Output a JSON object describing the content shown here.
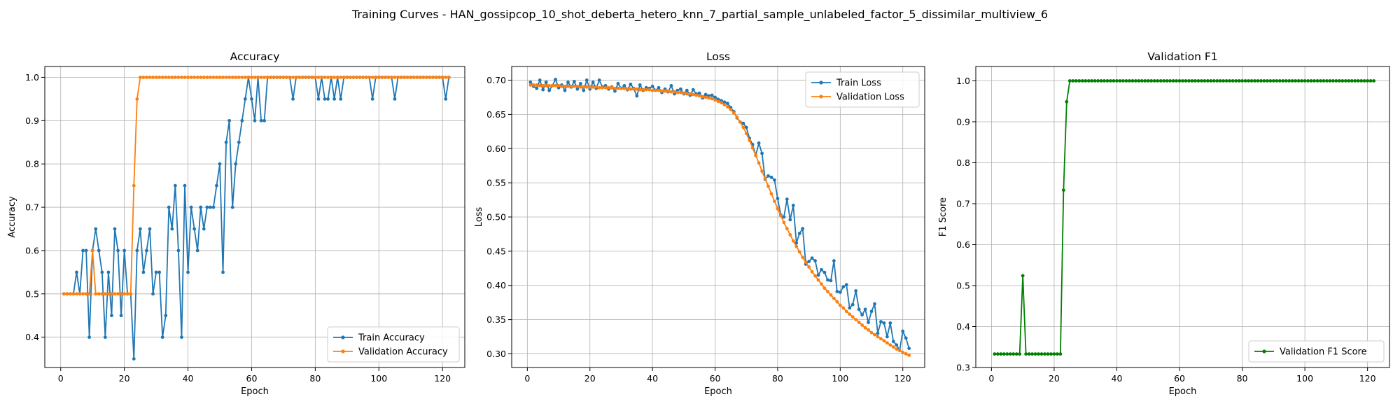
{
  "figure": {
    "suptitle": "Training Curves - HAN_gossipcop_10_shot_deberta_hetero_knn_7_partial_sample_unlabeled_factor_5_dissimilar_multiview_6"
  },
  "colors": {
    "train": "#1f77b4",
    "validation": "#ff7f0e",
    "f1": "#008000",
    "grid": "#b0b0b0"
  },
  "chart_data": [
    {
      "type": "line",
      "title": "Accuracy",
      "xlabel": "Epoch",
      "ylabel": "Accuracy",
      "xlim": [
        -5,
        127
      ],
      "ylim": [
        0.33,
        1.025
      ],
      "xticks": [
        0,
        20,
        40,
        60,
        80,
        100,
        120
      ],
      "yticks": [
        0.4,
        0.5,
        0.6,
        0.7,
        0.8,
        0.9,
        1.0
      ],
      "grid": true,
      "legend_position": "lower-right",
      "x": [
        1,
        2,
        3,
        4,
        5,
        6,
        7,
        8,
        9,
        10,
        11,
        12,
        13,
        14,
        15,
        16,
        17,
        18,
        19,
        20,
        21,
        22,
        23,
        24,
        25,
        26,
        27,
        28,
        29,
        30,
        31,
        32,
        33,
        34,
        35,
        36,
        37,
        38,
        39,
        40,
        41,
        42,
        43,
        44,
        45,
        46,
        47,
        48,
        49,
        50,
        51,
        52,
        53,
        54,
        55,
        56,
        57,
        58,
        59,
        60,
        61,
        62,
        63,
        64,
        65,
        66,
        67,
        68,
        69,
        70,
        71,
        72,
        73,
        74,
        75,
        76,
        77,
        78,
        79,
        80,
        81,
        82,
        83,
        84,
        85,
        86,
        87,
        88,
        89,
        90,
        91,
        92,
        93,
        94,
        95,
        96,
        97,
        98,
        99,
        100,
        101,
        102,
        103,
        104,
        105,
        106,
        107,
        108,
        109,
        110,
        111,
        112,
        113,
        114,
        115,
        116,
        117,
        118,
        119,
        120,
        121,
        122
      ],
      "series": [
        {
          "name": "Train Accuracy",
          "color": "#1f77b4",
          "values": [
            0.5,
            0.5,
            0.5,
            0.5,
            0.55,
            0.5,
            0.6,
            0.6,
            0.4,
            0.6,
            0.65,
            0.6,
            0.55,
            0.4,
            0.55,
            0.45,
            0.65,
            0.6,
            0.45,
            0.6,
            0.5,
            0.5,
            0.35,
            0.6,
            0.65,
            0.55,
            0.6,
            0.65,
            0.5,
            0.55,
            0.55,
            0.4,
            0.45,
            0.7,
            0.65,
            0.75,
            0.6,
            0.4,
            0.75,
            0.55,
            0.7,
            0.65,
            0.6,
            0.7,
            0.65,
            0.7,
            0.7,
            0.7,
            0.75,
            0.8,
            0.55,
            0.85,
            0.9,
            0.7,
            0.8,
            0.85,
            0.9,
            0.95,
            1.0,
            0.95,
            0.9,
            1.0,
            0.9,
            0.9,
            1.0,
            1.0,
            1.0,
            1.0,
            1.0,
            1.0,
            1.0,
            1.0,
            0.95,
            1.0,
            1.0,
            1.0,
            1.0,
            1.0,
            1.0,
            1.0,
            0.95,
            1.0,
            0.95,
            0.95,
            1.0,
            0.95,
            1.0,
            0.95,
            1.0,
            1.0,
            1.0,
            1.0,
            1.0,
            1.0,
            1.0,
            1.0,
            1.0,
            0.95,
            1.0,
            1.0,
            1.0,
            1.0,
            1.0,
            1.0,
            0.95,
            1.0,
            1.0,
            1.0,
            1.0,
            1.0,
            1.0,
            1.0,
            1.0,
            1.0,
            1.0,
            1.0,
            1.0,
            1.0,
            1.0,
            1.0,
            0.95,
            1.0
          ]
        },
        {
          "name": "Validation Accuracy",
          "color": "#ff7f0e",
          "values": [
            0.5,
            0.5,
            0.5,
            0.5,
            0.5,
            0.5,
            0.5,
            0.5,
            0.5,
            0.6,
            0.5,
            0.5,
            0.5,
            0.5,
            0.5,
            0.5,
            0.5,
            0.5,
            0.5,
            0.5,
            0.5,
            0.5,
            0.75,
            0.95,
            1.0,
            1.0,
            1.0,
            1.0,
            1.0,
            1.0,
            1.0,
            1.0,
            1.0,
            1.0,
            1.0,
            1.0,
            1.0,
            1.0,
            1.0,
            1.0,
            1.0,
            1.0,
            1.0,
            1.0,
            1.0,
            1.0,
            1.0,
            1.0,
            1.0,
            1.0,
            1.0,
            1.0,
            1.0,
            1.0,
            1.0,
            1.0,
            1.0,
            1.0,
            1.0,
            1.0,
            1.0,
            1.0,
            1.0,
            1.0,
            1.0,
            1.0,
            1.0,
            1.0,
            1.0,
            1.0,
            1.0,
            1.0,
            1.0,
            1.0,
            1.0,
            1.0,
            1.0,
            1.0,
            1.0,
            1.0,
            1.0,
            1.0,
            1.0,
            1.0,
            1.0,
            1.0,
            1.0,
            1.0,
            1.0,
            1.0,
            1.0,
            1.0,
            1.0,
            1.0,
            1.0,
            1.0,
            1.0,
            1.0,
            1.0,
            1.0,
            1.0,
            1.0,
            1.0,
            1.0,
            1.0,
            1.0,
            1.0,
            1.0,
            1.0,
            1.0,
            1.0,
            1.0,
            1.0,
            1.0,
            1.0,
            1.0,
            1.0,
            1.0,
            1.0,
            1.0,
            1.0,
            1.0
          ]
        }
      ]
    },
    {
      "type": "line",
      "title": "Loss",
      "xlabel": "Epoch",
      "ylabel": "Loss",
      "xlim": [
        -5,
        127
      ],
      "ylim": [
        0.28,
        0.72
      ],
      "xticks": [
        0,
        20,
        40,
        60,
        80,
        100,
        120
      ],
      "yticks": [
        0.3,
        0.35,
        0.4,
        0.45,
        0.5,
        0.55,
        0.6,
        0.65,
        0.7
      ],
      "grid": true,
      "legend_position": "upper-right",
      "x": [
        1,
        2,
        3,
        4,
        5,
        6,
        7,
        8,
        9,
        10,
        11,
        12,
        13,
        14,
        15,
        16,
        17,
        18,
        19,
        20,
        21,
        22,
        23,
        24,
        25,
        26,
        27,
        28,
        29,
        30,
        31,
        32,
        33,
        34,
        35,
        36,
        37,
        38,
        39,
        40,
        41,
        42,
        43,
        44,
        45,
        46,
        47,
        48,
        49,
        50,
        51,
        52,
        53,
        54,
        55,
        56,
        57,
        58,
        59,
        60,
        61,
        62,
        63,
        64,
        65,
        66,
        67,
        68,
        69,
        70,
        71,
        72,
        73,
        74,
        75,
        76,
        77,
        78,
        79,
        80,
        81,
        82,
        83,
        84,
        85,
        86,
        87,
        88,
        89,
        90,
        91,
        92,
        93,
        94,
        95,
        96,
        97,
        98,
        99,
        100,
        101,
        102,
        103,
        104,
        105,
        106,
        107,
        108,
        109,
        110,
        111,
        112,
        113,
        114,
        115,
        116,
        117,
        118,
        119,
        120,
        121,
        122
      ],
      "series": [
        {
          "name": "Train Loss",
          "color": "#1f77b4",
          "values": [
            0.697,
            0.691,
            0.688,
            0.7,
            0.686,
            0.697,
            0.685,
            0.692,
            0.701,
            0.689,
            0.693,
            0.685,
            0.697,
            0.69,
            0.698,
            0.687,
            0.695,
            0.685,
            0.7,
            0.687,
            0.697,
            0.688,
            0.7,
            0.69,
            0.692,
            0.687,
            0.69,
            0.684,
            0.695,
            0.688,
            0.692,
            0.686,
            0.694,
            0.688,
            0.677,
            0.693,
            0.685,
            0.689,
            0.688,
            0.691,
            0.685,
            0.689,
            0.682,
            0.687,
            0.683,
            0.692,
            0.68,
            0.685,
            0.687,
            0.68,
            0.685,
            0.678,
            0.686,
            0.68,
            0.681,
            0.674,
            0.679,
            0.677,
            0.678,
            0.675,
            0.672,
            0.67,
            0.668,
            0.666,
            0.66,
            0.654,
            0.645,
            0.639,
            0.637,
            0.631,
            0.615,
            0.606,
            0.59,
            0.608,
            0.593,
            0.555,
            0.56,
            0.558,
            0.554,
            0.527,
            0.503,
            0.5,
            0.526,
            0.496,
            0.517,
            0.462,
            0.476,
            0.483,
            0.431,
            0.435,
            0.44,
            0.436,
            0.415,
            0.423,
            0.419,
            0.408,
            0.407,
            0.436,
            0.391,
            0.39,
            0.398,
            0.401,
            0.367,
            0.372,
            0.392,
            0.365,
            0.357,
            0.365,
            0.346,
            0.362,
            0.373,
            0.33,
            0.347,
            0.345,
            0.325,
            0.345,
            0.318,
            0.313,
            0.305,
            0.333,
            0.323,
            0.308
          ]
        },
        {
          "name": "Validation Loss",
          "color": "#ff7f0e",
          "values": [
            0.693,
            0.693,
            0.693,
            0.692,
            0.692,
            0.692,
            0.692,
            0.692,
            0.692,
            0.692,
            0.691,
            0.691,
            0.691,
            0.691,
            0.691,
            0.691,
            0.69,
            0.69,
            0.69,
            0.69,
            0.69,
            0.69,
            0.689,
            0.689,
            0.689,
            0.689,
            0.689,
            0.688,
            0.688,
            0.688,
            0.688,
            0.687,
            0.687,
            0.687,
            0.687,
            0.686,
            0.686,
            0.686,
            0.686,
            0.685,
            0.685,
            0.685,
            0.684,
            0.684,
            0.684,
            0.683,
            0.683,
            0.682,
            0.682,
            0.681,
            0.68,
            0.68,
            0.679,
            0.678,
            0.677,
            0.676,
            0.675,
            0.674,
            0.673,
            0.671,
            0.669,
            0.667,
            0.664,
            0.661,
            0.657,
            0.652,
            0.646,
            0.639,
            0.631,
            0.622,
            0.612,
            0.601,
            0.59,
            0.579,
            0.567,
            0.556,
            0.545,
            0.534,
            0.523,
            0.512,
            0.502,
            0.492,
            0.483,
            0.474,
            0.465,
            0.457,
            0.449,
            0.441,
            0.434,
            0.427,
            0.42,
            0.414,
            0.408,
            0.402,
            0.396,
            0.391,
            0.386,
            0.381,
            0.376,
            0.371,
            0.367,
            0.362,
            0.358,
            0.354,
            0.35,
            0.346,
            0.342,
            0.338,
            0.335,
            0.331,
            0.328,
            0.325,
            0.322,
            0.319,
            0.316,
            0.313,
            0.31,
            0.307,
            0.305,
            0.302,
            0.3,
            0.298
          ]
        }
      ]
    },
    {
      "type": "line",
      "title": "Validation F1",
      "xlabel": "Epoch",
      "ylabel": "F1 Score",
      "xlim": [
        -5,
        127
      ],
      "ylim": [
        0.3,
        1.035
      ],
      "xticks": [
        0,
        20,
        40,
        60,
        80,
        100,
        120
      ],
      "yticks": [
        0.3,
        0.4,
        0.5,
        0.6,
        0.7,
        0.8,
        0.9,
        1.0
      ],
      "grid": true,
      "legend_position": "lower-right",
      "x": [
        1,
        2,
        3,
        4,
        5,
        6,
        7,
        8,
        9,
        10,
        11,
        12,
        13,
        14,
        15,
        16,
        17,
        18,
        19,
        20,
        21,
        22,
        23,
        24,
        25,
        26,
        27,
        28,
        29,
        30,
        31,
        32,
        33,
        34,
        35,
        36,
        37,
        38,
        39,
        40,
        41,
        42,
        43,
        44,
        45,
        46,
        47,
        48,
        49,
        50,
        51,
        52,
        53,
        54,
        55,
        56,
        57,
        58,
        59,
        60,
        61,
        62,
        63,
        64,
        65,
        66,
        67,
        68,
        69,
        70,
        71,
        72,
        73,
        74,
        75,
        76,
        77,
        78,
        79,
        80,
        81,
        82,
        83,
        84,
        85,
        86,
        87,
        88,
        89,
        90,
        91,
        92,
        93,
        94,
        95,
        96,
        97,
        98,
        99,
        100,
        101,
        102,
        103,
        104,
        105,
        106,
        107,
        108,
        109,
        110,
        111,
        112,
        113,
        114,
        115,
        116,
        117,
        118,
        119,
        120,
        121,
        122
      ],
      "series": [
        {
          "name": "Validation F1 Score",
          "color": "#008000",
          "values": [
            0.333,
            0.333,
            0.333,
            0.333,
            0.333,
            0.333,
            0.333,
            0.333,
            0.333,
            0.524,
            0.333,
            0.333,
            0.333,
            0.333,
            0.333,
            0.333,
            0.333,
            0.333,
            0.333,
            0.333,
            0.333,
            0.333,
            0.733,
            0.949,
            1.0,
            1.0,
            1.0,
            1.0,
            1.0,
            1.0,
            1.0,
            1.0,
            1.0,
            1.0,
            1.0,
            1.0,
            1.0,
            1.0,
            1.0,
            1.0,
            1.0,
            1.0,
            1.0,
            1.0,
            1.0,
            1.0,
            1.0,
            1.0,
            1.0,
            1.0,
            1.0,
            1.0,
            1.0,
            1.0,
            1.0,
            1.0,
            1.0,
            1.0,
            1.0,
            1.0,
            1.0,
            1.0,
            1.0,
            1.0,
            1.0,
            1.0,
            1.0,
            1.0,
            1.0,
            1.0,
            1.0,
            1.0,
            1.0,
            1.0,
            1.0,
            1.0,
            1.0,
            1.0,
            1.0,
            1.0,
            1.0,
            1.0,
            1.0,
            1.0,
            1.0,
            1.0,
            1.0,
            1.0,
            1.0,
            1.0,
            1.0,
            1.0,
            1.0,
            1.0,
            1.0,
            1.0,
            1.0,
            1.0,
            1.0,
            1.0,
            1.0,
            1.0,
            1.0,
            1.0,
            1.0,
            1.0,
            1.0,
            1.0,
            1.0,
            1.0,
            1.0,
            1.0,
            1.0,
            1.0,
            1.0,
            1.0,
            1.0,
            1.0,
            1.0,
            1.0,
            1.0,
            1.0
          ]
        }
      ]
    }
  ]
}
